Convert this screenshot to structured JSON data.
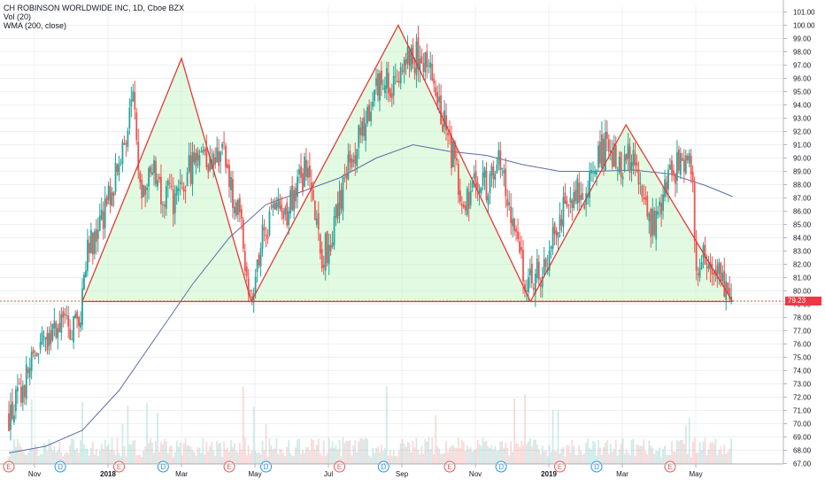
{
  "legend": {
    "title": "CH ROBINSON WORLDWIDE INC, 1D, Cboe BZX",
    "vol": "Vol (20)",
    "wma": "WMA (200, close)"
  },
  "colors": {
    "up": "#26a69a",
    "down": "#ef5350",
    "pattern": "#e53935",
    "pattern_fill": "#c8f5c8",
    "wma": "#5b6ea8",
    "price_tag": "#f23645",
    "event_e": "#ef5350",
    "event_d": "#2196f3"
  },
  "last_price_label": "79.23",
  "chart_data": {
    "type": "candlestick",
    "y_axis_ticks": [
      "101.00",
      "100.00",
      "99.00",
      "98.00",
      "97.00",
      "96.00",
      "95.00",
      "94.00",
      "93.00",
      "92.00",
      "91.00",
      "90.00",
      "89.00",
      "88.00",
      "87.00",
      "86.00",
      "85.00",
      "84.00",
      "83.00",
      "82.00",
      "81.00",
      "80.00",
      "79.00",
      "78.00",
      "77.00",
      "76.00",
      "75.00",
      "74.00",
      "73.00",
      "72.00",
      "71.00",
      "70.00",
      "69.00",
      "68.00",
      "67.00"
    ],
    "y_axis_values": [
      101,
      100,
      99,
      98,
      97,
      96,
      95,
      94,
      93,
      92,
      91,
      90,
      89,
      88,
      87,
      86,
      85,
      84,
      83,
      82,
      81,
      80,
      79,
      78,
      77,
      76,
      75,
      74,
      73,
      72,
      71,
      70,
      69,
      68,
      67
    ],
    "x_axis_labels": [
      "Nov",
      "2018",
      "Mar",
      "May",
      "Jul",
      "Sep",
      "Nov",
      "2019",
      "Mar",
      "May"
    ],
    "x_axis_months": [
      0.7,
      2.7,
      4.7,
      6.7,
      8.7,
      10.7,
      12.7,
      14.7,
      16.7,
      18.7
    ],
    "price_anchors": [
      [
        0,
        70.5
      ],
      [
        0.3,
        72
      ],
      [
        0.7,
        75
      ],
      [
        1.0,
        76
      ],
      [
        1.4,
        78
      ],
      [
        1.6,
        77
      ],
      [
        1.9,
        77.5
      ],
      [
        2.0,
        79
      ],
      [
        2.1,
        83
      ],
      [
        2.4,
        84.5
      ],
      [
        2.6,
        86
      ],
      [
        2.9,
        88.5
      ],
      [
        3.2,
        92
      ],
      [
        3.4,
        94
      ],
      [
        3.6,
        88
      ],
      [
        3.9,
        89
      ],
      [
        4.2,
        87.5
      ],
      [
        4.6,
        86.5
      ],
      [
        4.9,
        89
      ],
      [
        5.2,
        91
      ],
      [
        5.5,
        89.5
      ],
      [
        5.8,
        91
      ],
      [
        6.0,
        88
      ],
      [
        6.3,
        85
      ],
      [
        6.6,
        79.5
      ],
      [
        6.9,
        84
      ],
      [
        7.2,
        86
      ],
      [
        7.5,
        85.5
      ],
      [
        7.8,
        88
      ],
      [
        8.1,
        89
      ],
      [
        8.3,
        85.5
      ],
      [
        8.5,
        82.5
      ],
      [
        8.8,
        84
      ],
      [
        9.2,
        89
      ],
      [
        9.6,
        92
      ],
      [
        10.0,
        95.5
      ],
      [
        10.4,
        95.5
      ],
      [
        10.8,
        98
      ],
      [
        11.2,
        97.5
      ],
      [
        11.5,
        96
      ],
      [
        11.8,
        93
      ],
      [
        12.1,
        90
      ],
      [
        12.4,
        86
      ],
      [
        12.7,
        89
      ],
      [
        13.0,
        88
      ],
      [
        13.3,
        90
      ],
      [
        13.6,
        87
      ],
      [
        13.9,
        84
      ],
      [
        14.1,
        80
      ],
      [
        14.3,
        81
      ],
      [
        14.6,
        82
      ],
      [
        15.0,
        85.5
      ],
      [
        15.3,
        87
      ],
      [
        15.7,
        87.5
      ],
      [
        16.0,
        90
      ],
      [
        16.3,
        91
      ],
      [
        16.6,
        89.5
      ],
      [
        16.9,
        90
      ],
      [
        17.2,
        88
      ],
      [
        17.5,
        85
      ],
      [
        17.8,
        87
      ],
      [
        18.1,
        89
      ],
      [
        18.4,
        90
      ],
      [
        18.6,
        89
      ],
      [
        18.7,
        81
      ],
      [
        18.9,
        82.5
      ],
      [
        19.2,
        82
      ],
      [
        19.5,
        80.5
      ],
      [
        19.7,
        79.2
      ]
    ],
    "wma_200": [
      [
        0,
        67.8
      ],
      [
        1,
        68.3
      ],
      [
        2,
        69.5
      ],
      [
        3,
        72.5
      ],
      [
        4,
        76.5
      ],
      [
        5,
        80.5
      ],
      [
        6,
        84
      ],
      [
        7,
        86.5
      ],
      [
        8,
        87.5
      ],
      [
        9,
        88.5
      ],
      [
        10,
        90
      ],
      [
        11,
        91
      ],
      [
        12,
        90.5
      ],
      [
        13,
        90.2
      ],
      [
        14,
        89.5
      ],
      [
        15,
        89
      ],
      [
        16,
        89
      ],
      [
        17,
        89.1
      ],
      [
        18,
        88.8
      ],
      [
        19,
        87.9
      ],
      [
        19.7,
        87.1
      ]
    ],
    "patterns": [
      {
        "name": "left-shoulder",
        "points": [
          [
            2.0,
            79.2
          ],
          [
            4.7,
            97.5
          ],
          [
            6.6,
            79.2
          ]
        ]
      },
      {
        "name": "head",
        "points": [
          [
            6.6,
            79.2
          ],
          [
            10.6,
            100
          ],
          [
            14.2,
            79.2
          ]
        ]
      },
      {
        "name": "right-shoulder",
        "points": [
          [
            14.2,
            79.2
          ],
          [
            16.8,
            92.5
          ],
          [
            19.7,
            79.2
          ]
        ]
      }
    ],
    "neckline": 79.2,
    "last_price": 79.23,
    "events": [
      {
        "label": "E",
        "kind": "earnings",
        "month": 0.0
      },
      {
        "label": "D",
        "kind": "dividend",
        "month": 1.4
      },
      {
        "label": "E",
        "kind": "earnings",
        "month": 3.0
      },
      {
        "label": "D",
        "kind": "dividend",
        "month": 4.2
      },
      {
        "label": "E",
        "kind": "earnings",
        "month": 6.0
      },
      {
        "label": "D",
        "kind": "dividend",
        "month": 7.0
      },
      {
        "label": "E",
        "kind": "earnings",
        "month": 9.0
      },
      {
        "label": "D",
        "kind": "dividend",
        "month": 10.2
      },
      {
        "label": "E",
        "kind": "earnings",
        "month": 12.0
      },
      {
        "label": "D",
        "kind": "dividend",
        "month": 13.4
      },
      {
        "label": "E",
        "kind": "earnings",
        "month": 15.0
      },
      {
        "label": "D",
        "kind": "dividend",
        "month": 16.0
      },
      {
        "label": "E",
        "kind": "earnings",
        "month": 18.0
      }
    ],
    "candles_per_month": 21,
    "ylim": [
      66.5,
      101.6
    ],
    "grid": true
  }
}
